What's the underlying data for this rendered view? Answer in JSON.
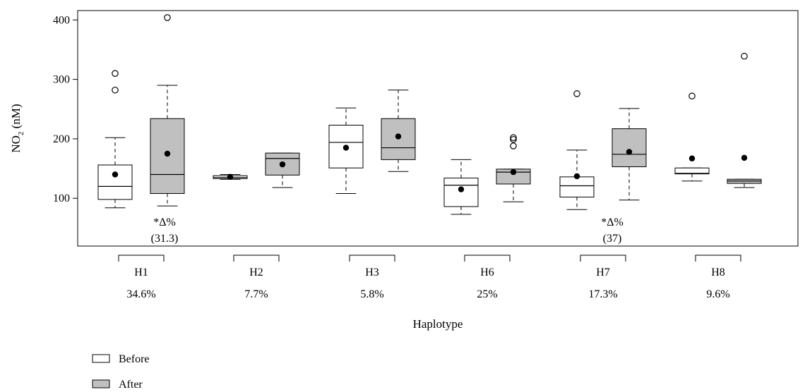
{
  "chart_data": {
    "type": "box",
    "ylabel_main": "NO",
    "ylabel_sub": "2",
    "ylabel_unit": " (nM)",
    "xlabel": "Haplotype",
    "ylim": [
      0,
      400
    ],
    "yticks": [
      100,
      200,
      300,
      400
    ],
    "colors": {
      "before": "#ffffff",
      "after": "#c0c0c0"
    },
    "series": [
      {
        "name": "Before",
        "key": "before"
      },
      {
        "name": "After",
        "key": "after"
      }
    ],
    "groups": [
      {
        "label": "H1",
        "pct": "34.6%",
        "annotation": "*Δ%",
        "annotation_value": "(31.3)",
        "before": {
          "min": 84,
          "q1": 98,
          "median": 120,
          "q3": 156,
          "max": 202,
          "mean": 140,
          "outliers": [
            282,
            310
          ]
        },
        "after": {
          "min": 87,
          "q1": 108,
          "median": 140,
          "q3": 234,
          "max": 290,
          "mean": 175,
          "outliers": [
            404
          ]
        }
      },
      {
        "label": "H2",
        "pct": "7.7%",
        "before": {
          "min": 132,
          "q1": 133,
          "median": 135,
          "q3": 138,
          "max": 140,
          "mean": 136,
          "outliers": []
        },
        "after": {
          "min": 118,
          "q1": 139,
          "median": 167,
          "q3": 176,
          "max": 176,
          "mean": 157,
          "outliers": []
        }
      },
      {
        "label": "H3",
        "pct": "5.8%",
        "before": {
          "min": 108,
          "q1": 151,
          "median": 194,
          "q3": 223,
          "max": 252,
          "mean": 185,
          "outliers": []
        },
        "after": {
          "min": 145,
          "q1": 165,
          "median": 185,
          "q3": 234,
          "max": 282,
          "mean": 204,
          "outliers": []
        }
      },
      {
        "label": "H6",
        "pct": "25%",
        "before": {
          "min": 73,
          "q1": 86,
          "median": 122,
          "q3": 134,
          "max": 165,
          "mean": 115,
          "outliers": []
        },
        "after": {
          "min": 94,
          "q1": 124,
          "median": 144,
          "q3": 149,
          "max": 149,
          "mean": 144,
          "outliers": [
            188,
            199,
            202
          ]
        }
      },
      {
        "label": "H7",
        "pct": "17.3%",
        "annotation": "*Δ%",
        "annotation_value": "(37)",
        "before": {
          "min": 81,
          "q1": 102,
          "median": 121,
          "q3": 136,
          "max": 181,
          "mean": 137,
          "outliers": [
            276
          ]
        },
        "after": {
          "min": 97,
          "q1": 153,
          "median": 174,
          "q3": 217,
          "max": 251,
          "mean": 178,
          "outliers": []
        }
      },
      {
        "label": "H8",
        "pct": "9.6%",
        "before": {
          "min": 129,
          "q1": 141,
          "median": 142,
          "q3": 151,
          "max": 151,
          "mean": 167,
          "outliers": [
            272
          ]
        },
        "after": {
          "min": 118,
          "q1": 125,
          "median": 129,
          "q3": 132,
          "max": 132,
          "mean": 168,
          "outliers": [
            339
          ]
        }
      }
    ]
  }
}
